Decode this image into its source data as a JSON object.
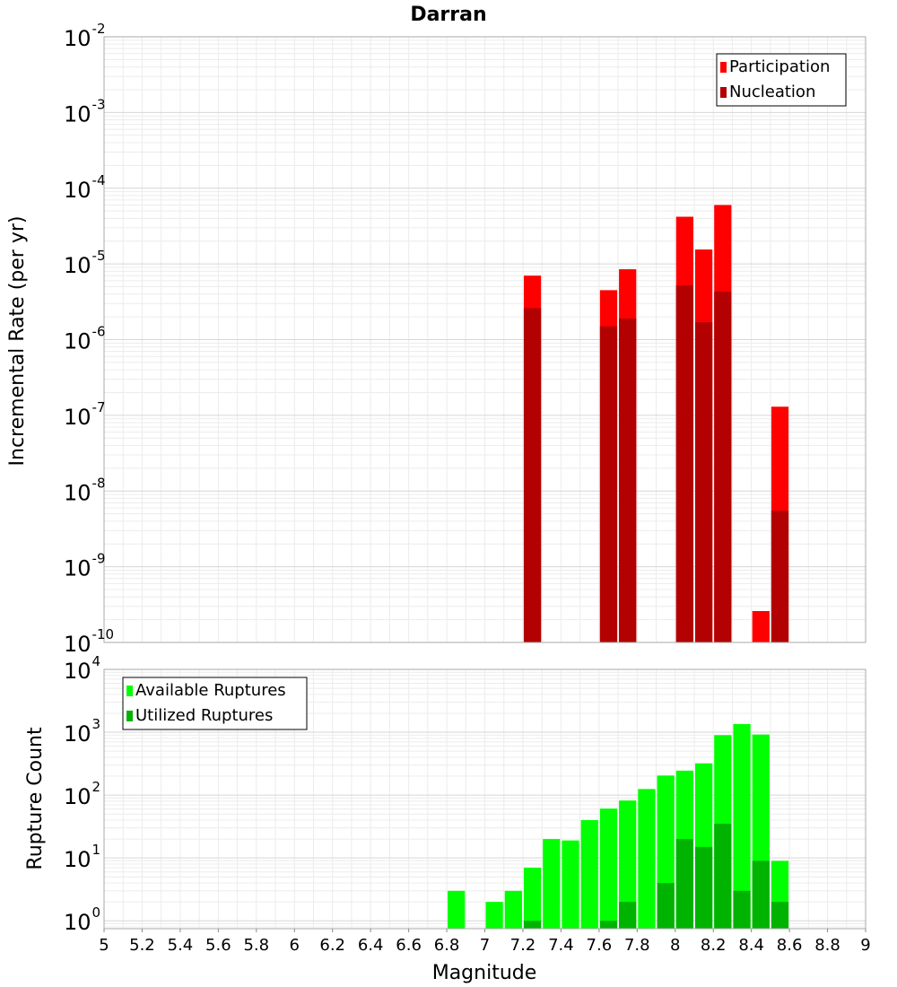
{
  "chart_data": [
    {
      "type": "bar",
      "title": "Darran",
      "xlabel": "",
      "ylabel": "Incremental Rate (per yr)",
      "xlim": [
        5,
        9
      ],
      "ylim": [
        1e-10,
        0.01
      ],
      "yscale": "log",
      "ytick_exponents": [
        -10,
        -9,
        -8,
        -7,
        -6,
        -5,
        -4,
        -3,
        -2
      ],
      "bin_width": 0.1,
      "legend_position": "top-right",
      "grid": true,
      "series": [
        {
          "name": "Participation",
          "color": "#ff0000",
          "x": [
            7.25,
            7.65,
            7.75,
            8.05,
            8.15,
            8.25,
            8.45,
            8.55
          ],
          "values": [
            7e-06,
            4.5e-06,
            8.5e-06,
            4.2e-05,
            1.55e-05,
            6e-05,
            2.6e-10,
            1.3e-07
          ]
        },
        {
          "name": "Nucleation",
          "color": "#b30000",
          "x": [
            7.25,
            7.65,
            7.75,
            8.05,
            8.15,
            8.25,
            8.55
          ],
          "values": [
            2.6e-06,
            1.5e-06,
            1.9e-06,
            5.2e-06,
            1.7e-06,
            4.3e-06,
            5.5e-09
          ]
        }
      ]
    },
    {
      "type": "bar",
      "title": "",
      "xlabel": "Magnitude",
      "ylabel": "Rupture Count",
      "xlim": [
        5,
        9
      ],
      "ylim": [
        0.75,
        10000
      ],
      "yscale": "log",
      "ytick_exponents": [
        0,
        1,
        2,
        3,
        4
      ],
      "xticks": [
        "5",
        "5.2",
        "5.4",
        "5.6",
        "5.8",
        "6",
        "6.2",
        "6.4",
        "6.6",
        "6.8",
        "7",
        "7.2",
        "7.4",
        "7.6",
        "7.8",
        "8",
        "8.2",
        "8.4",
        "8.6",
        "8.8",
        "9"
      ],
      "bin_width": 0.1,
      "legend_position": "top-left",
      "grid": true,
      "series": [
        {
          "name": "Available Ruptures",
          "color": "#00ff00",
          "x": [
            6.85,
            7.05,
            7.15,
            7.25,
            7.35,
            7.45,
            7.55,
            7.65,
            7.75,
            7.85,
            7.95,
            8.05,
            8.15,
            8.25,
            8.35,
            8.45,
            8.55
          ],
          "values": [
            3,
            2,
            3,
            7,
            20,
            19,
            40,
            61,
            82,
            125,
            205,
            245,
            320,
            900,
            1350,
            920,
            9
          ]
        },
        {
          "name": "Utilized Ruptures",
          "color": "#00b300",
          "x": [
            7.25,
            7.65,
            7.75,
            7.95,
            8.05,
            8.15,
            8.25,
            8.35,
            8.45,
            8.55
          ],
          "values": [
            1,
            1,
            2,
            4,
            20,
            15,
            35,
            3,
            9,
            2
          ]
        }
      ]
    }
  ]
}
